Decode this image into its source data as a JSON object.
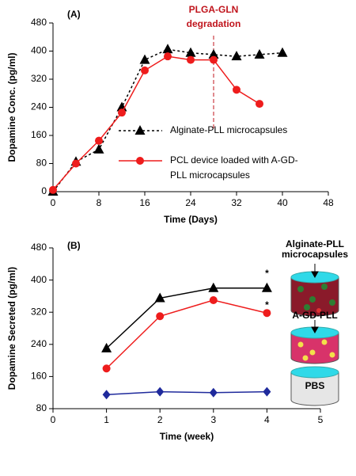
{
  "chart_data": [
    {
      "type": "line",
      "title": "(A)",
      "x_label": "Time (Days)",
      "y_label": "Dopamine Conc. (pg/ml)",
      "xlim": [
        0,
        48
      ],
      "xticks": [
        0,
        8,
        16,
        24,
        32,
        40,
        48
      ],
      "ylim": [
        0,
        480
      ],
      "yticks": [
        0,
        80,
        160,
        240,
        320,
        400,
        480
      ],
      "annotation": {
        "text": "PLGA-GLN degradation",
        "x": 28,
        "color": "#c0141c"
      },
      "series": [
        {
          "name": "Alginate-PLL microcapsules",
          "color": "#000000",
          "marker": "triangle",
          "line_style": "dashed",
          "x": [
            0,
            4,
            8,
            12,
            16,
            20,
            24,
            28,
            32,
            36,
            40
          ],
          "values": [
            0,
            85,
            120,
            240,
            375,
            405,
            395,
            390,
            385,
            390,
            395
          ]
        },
        {
          "name": "PCL device loaded with A-GD-PLL microcapsules",
          "color": "#ee1c1c",
          "marker": "circle",
          "line_style": "solid",
          "x": [
            0,
            4,
            8,
            12,
            16,
            20,
            24,
            28,
            32,
            36
          ],
          "values": [
            5,
            80,
            145,
            225,
            345,
            385,
            375,
            375,
            290,
            250
          ]
        }
      ]
    },
    {
      "type": "line",
      "title": "(B)",
      "x_label": "Time (week)",
      "y_label": "Dopamine Secreted (pg/ml)",
      "xlim": [
        0,
        5
      ],
      "xticks": [
        0,
        1,
        2,
        3,
        4,
        5
      ],
      "ylim": [
        80,
        480
      ],
      "yticks": [
        80,
        160,
        240,
        320,
        400,
        480
      ],
      "annotations": [
        "*",
        "*"
      ],
      "series": [
        {
          "name": "Alginate-PLL microcapsules",
          "color": "#000000",
          "marker": "triangle",
          "line_style": "solid",
          "x": [
            1,
            2,
            3,
            4
          ],
          "values": [
            230,
            355,
            380,
            380
          ]
        },
        {
          "name": "A-GD-PLL",
          "color": "#ee1c1c",
          "marker": "circle",
          "line_style": "solid",
          "x": [
            1,
            2,
            3,
            4
          ],
          "values": [
            180,
            310,
            350,
            318
          ]
        },
        {
          "name": "PBS",
          "color": "#1f2a9c",
          "marker": "diamond",
          "line_style": "solid",
          "x": [
            1,
            2,
            3,
            4
          ],
          "values": [
            115,
            122,
            120,
            122
          ]
        }
      ]
    }
  ]
}
